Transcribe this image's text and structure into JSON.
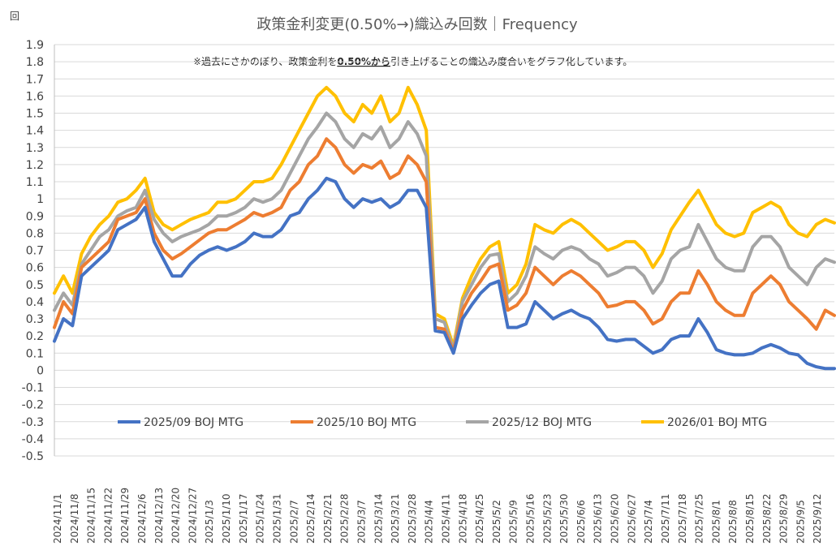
{
  "chart_data": {
    "type": "line",
    "title": "政策金利変更(0.50%→)織込み回数｜Frequency",
    "unit_label": "回",
    "annotation": {
      "prefix": "※過去にさかのぼり、政策金利を",
      "emphasis": "0.50%から",
      "suffix": "引き上げることの織込み度合いをグラフ化しています。"
    },
    "ylim": [
      -0.5,
      1.9
    ],
    "yticks": [
      "-0.5",
      "-0.4",
      "-0.3",
      "-0.2",
      "-0.1",
      "0",
      "0.1",
      "0.2",
      "0.3",
      "0.4",
      "0.5",
      "0.6",
      "0.7",
      "0.8",
      "0.9",
      "1",
      "1.1",
      "1.2",
      "1.3",
      "1.4",
      "1.5",
      "1.6",
      "1.7",
      "1.8",
      "1.9"
    ],
    "xticks": [
      "2024/11/1",
      "2024/11/8",
      "2024/11/15",
      "2024/11/22",
      "2024/11/29",
      "2024/12/6",
      "2024/12/13",
      "2024/12/20",
      "2024/12/27",
      "2025/1/3",
      "2025/1/10",
      "2025/1/17",
      "2025/1/24",
      "2025/1/31",
      "2025/2/7",
      "2025/2/14",
      "2025/2/21",
      "2025/2/28",
      "2025/3/7",
      "2025/3/14",
      "2025/3/21",
      "2025/3/28",
      "2025/4/4",
      "2025/4/11",
      "2025/4/18",
      "2025/4/25",
      "2025/5/2",
      "2025/5/9",
      "2025/5/16",
      "2025/5/23",
      "2025/5/30",
      "2025/6/6",
      "2025/6/13",
      "2025/6/20",
      "2025/6/27",
      "2025/7/4",
      "2025/7/11",
      "2025/7/18",
      "2025/7/25",
      "2025/8/1",
      "2025/8/8",
      "2025/8/15",
      "2025/8/22",
      "2025/8/29",
      "2025/9/5",
      "2025/9/12"
    ],
    "grid": true,
    "legend_position": "bottom",
    "series": [
      {
        "name": "2025/09 BOJ MTG",
        "color": "#4472c4",
        "values": [
          0.17,
          0.3,
          0.26,
          0.55,
          0.6,
          0.65,
          0.7,
          0.82,
          0.85,
          0.88,
          0.95,
          0.75,
          0.65,
          0.55,
          0.55,
          0.62,
          0.67,
          0.7,
          0.72,
          0.7,
          0.72,
          0.75,
          0.8,
          0.78,
          0.78,
          0.82,
          0.9,
          0.92,
          1.0,
          1.05,
          1.12,
          1.1,
          1.0,
          0.95,
          1.0,
          0.98,
          1.0,
          0.95,
          0.98,
          1.05,
          1.05,
          0.95,
          0.23,
          0.22,
          0.1,
          0.3,
          0.38,
          0.45,
          0.5,
          0.52,
          0.25,
          0.25,
          0.27,
          0.4,
          0.35,
          0.3,
          0.33,
          0.35,
          0.32,
          0.3,
          0.25,
          0.18,
          0.17,
          0.18,
          0.18,
          0.14,
          0.1,
          0.12,
          0.18,
          0.2,
          0.2,
          0.3,
          0.22,
          0.12,
          0.1,
          0.09,
          0.09,
          0.1,
          0.13,
          0.15,
          0.13,
          0.1,
          0.09,
          0.04,
          0.02,
          0.01,
          0.01
        ]
      },
      {
        "name": "2025/10 BOJ MTG",
        "color": "#ed7d31",
        "values": [
          0.25,
          0.4,
          0.33,
          0.6,
          0.65,
          0.7,
          0.75,
          0.88,
          0.9,
          0.92,
          1.0,
          0.8,
          0.7,
          0.65,
          0.68,
          0.72,
          0.76,
          0.8,
          0.82,
          0.82,
          0.85,
          0.88,
          0.92,
          0.9,
          0.92,
          0.95,
          1.05,
          1.1,
          1.2,
          1.25,
          1.35,
          1.3,
          1.2,
          1.15,
          1.2,
          1.18,
          1.22,
          1.12,
          1.15,
          1.25,
          1.2,
          1.1,
          0.25,
          0.24,
          0.11,
          0.35,
          0.45,
          0.52,
          0.6,
          0.62,
          0.35,
          0.38,
          0.45,
          0.6,
          0.55,
          0.5,
          0.55,
          0.58,
          0.55,
          0.5,
          0.45,
          0.37,
          0.38,
          0.4,
          0.4,
          0.35,
          0.27,
          0.3,
          0.4,
          0.45,
          0.45,
          0.58,
          0.5,
          0.4,
          0.35,
          0.32,
          0.32,
          0.45,
          0.5,
          0.55,
          0.5,
          0.4,
          0.35,
          0.3,
          0.24,
          0.35,
          0.32
        ]
      },
      {
        "name": "2025/12 BOJ MTG",
        "color": "#a5a5a5",
        "values": [
          0.35,
          0.45,
          0.38,
          0.62,
          0.7,
          0.78,
          0.82,
          0.9,
          0.93,
          0.95,
          1.05,
          0.88,
          0.8,
          0.75,
          0.78,
          0.8,
          0.82,
          0.85,
          0.9,
          0.9,
          0.92,
          0.95,
          1.0,
          0.98,
          1.0,
          1.05,
          1.15,
          1.25,
          1.35,
          1.42,
          1.5,
          1.45,
          1.35,
          1.3,
          1.38,
          1.35,
          1.42,
          1.3,
          1.35,
          1.45,
          1.38,
          1.25,
          0.3,
          0.28,
          0.12,
          0.4,
          0.5,
          0.6,
          0.67,
          0.68,
          0.4,
          0.45,
          0.55,
          0.72,
          0.68,
          0.65,
          0.7,
          0.72,
          0.7,
          0.65,
          0.62,
          0.55,
          0.57,
          0.6,
          0.6,
          0.55,
          0.45,
          0.52,
          0.65,
          0.7,
          0.72,
          0.85,
          0.75,
          0.65,
          0.6,
          0.58,
          0.58,
          0.72,
          0.78,
          0.78,
          0.72,
          0.6,
          0.55,
          0.5,
          0.6,
          0.65,
          0.63
        ]
      },
      {
        "name": "2026/01 BOJ MTG",
        "color": "#ffc000",
        "values": [
          0.45,
          0.55,
          0.45,
          0.68,
          0.78,
          0.85,
          0.9,
          0.98,
          1.0,
          1.05,
          1.12,
          0.92,
          0.85,
          0.82,
          0.85,
          0.88,
          0.9,
          0.92,
          0.98,
          0.98,
          1.0,
          1.05,
          1.1,
          1.1,
          1.12,
          1.2,
          1.3,
          1.4,
          1.5,
          1.6,
          1.65,
          1.6,
          1.5,
          1.45,
          1.55,
          1.5,
          1.6,
          1.45,
          1.5,
          1.65,
          1.55,
          1.4,
          0.33,
          0.3,
          0.14,
          0.42,
          0.55,
          0.65,
          0.72,
          0.75,
          0.45,
          0.5,
          0.62,
          0.85,
          0.82,
          0.8,
          0.85,
          0.88,
          0.85,
          0.8,
          0.75,
          0.7,
          0.72,
          0.75,
          0.75,
          0.7,
          0.6,
          0.68,
          0.82,
          0.9,
          0.98,
          1.05,
          0.95,
          0.85,
          0.8,
          0.78,
          0.8,
          0.92,
          0.95,
          0.98,
          0.95,
          0.85,
          0.8,
          0.78,
          0.85,
          0.88,
          0.86
        ]
      }
    ]
  }
}
